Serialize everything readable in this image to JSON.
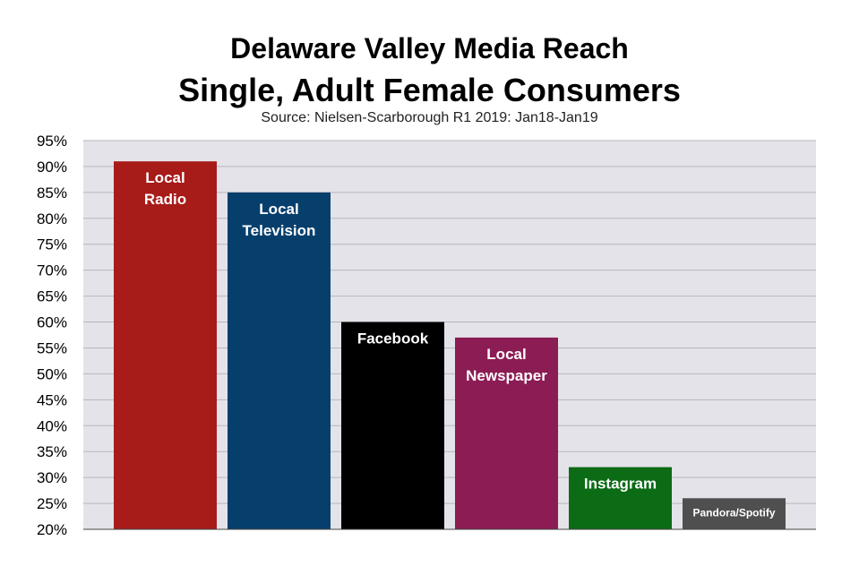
{
  "chart_data": {
    "type": "bar",
    "title": "Delaware Valley Media Reach",
    "subtitle": "Single, Adult Female Consumers",
    "source": "Source: Nielsen-Scarborough R1 2019: Jan18-Jan19",
    "categories": [
      [
        "Local",
        "Radio"
      ],
      [
        "Local",
        "Television"
      ],
      [
        "Facebook"
      ],
      [
        "Local",
        "Newspaper"
      ],
      [
        "Instagram"
      ],
      [
        "Pandora/Spotify"
      ]
    ],
    "values": [
      91,
      85,
      60,
      57,
      32,
      26
    ],
    "colors": [
      "#a71b19",
      "#073f6c",
      "#000000",
      "#8c1c54",
      "#0c6b15",
      "#4f4f4f"
    ],
    "ylim": [
      20,
      95
    ],
    "yticks": [
      "20%",
      "25%",
      "30%",
      "35%",
      "40%",
      "45%",
      "50%",
      "55%",
      "60%",
      "65%",
      "70%",
      "75%",
      "80%",
      "85%",
      "90%",
      "95%"
    ],
    "ytick_values": [
      20,
      25,
      30,
      35,
      40,
      45,
      50,
      55,
      60,
      65,
      70,
      75,
      80,
      85,
      90,
      95
    ],
    "grid": true,
    "background": "#e5e3ea"
  }
}
